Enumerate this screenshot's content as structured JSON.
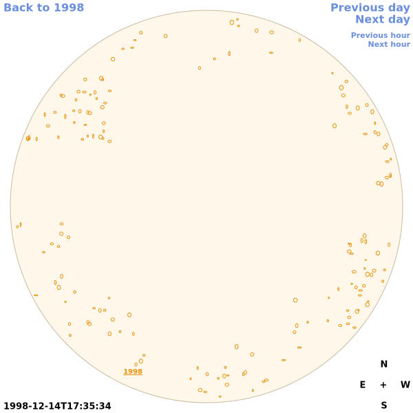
{
  "header": {
    "back_link": "Back to 1998",
    "previous_day": "Previous day",
    "next_day": "Next day",
    "previous_hour": "Previous hour",
    "next_hour": "Next hour"
  },
  "image": {
    "marker_label": "1998",
    "timestamp": "1998-12-14T17:35:34"
  },
  "compass": {
    "north": "N",
    "east": "E",
    "center": "+",
    "west": "W",
    "south": "S"
  }
}
